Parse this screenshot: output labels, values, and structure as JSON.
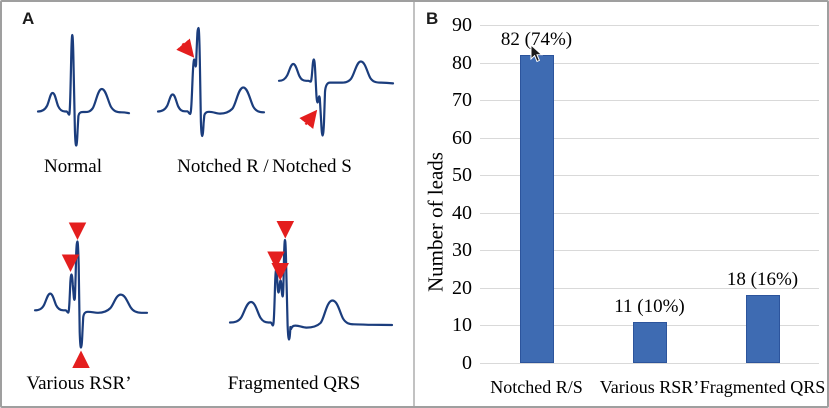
{
  "panel_a": {
    "label": "A",
    "captions": {
      "normal": "Normal",
      "notched_r": "Notched R",
      "slash": "/",
      "notched_s": "Notched S",
      "various_rsr": "Various RSR’",
      "fragmented_qrs": "Fragmented QRS"
    },
    "waveforms": [
      "normal",
      "notched-r",
      "notched-s",
      "various-rsr",
      "fragmented-qrs"
    ]
  },
  "panel_b": {
    "label": "B"
  },
  "chart_data": {
    "type": "bar",
    "categories": [
      "Notched R/S",
      "Various RSR’",
      "Fragmented QRS"
    ],
    "values": [
      82,
      11,
      18
    ],
    "data_labels": [
      "82 (74%)",
      "11 (10%)",
      "18 (16%)"
    ],
    "percentages": [
      74,
      10,
      16
    ],
    "title": "",
    "xlabel": "",
    "ylabel": "Number of leads",
    "ylim": [
      0,
      90
    ],
    "yticks": [
      0,
      10,
      20,
      30,
      40,
      50,
      60,
      70,
      80,
      90
    ],
    "grid": true,
    "legend": false,
    "bar_color": "#3e6bb2",
    "bar_border_color": "#2c549c",
    "gridline_color": "#d9d9d9"
  },
  "colors": {
    "waveform": "#1b3d7d",
    "arrow": "#e41e1e",
    "figure_border": "#9f9f9f",
    "divider": "#c2c2c2",
    "text": "#000000"
  }
}
